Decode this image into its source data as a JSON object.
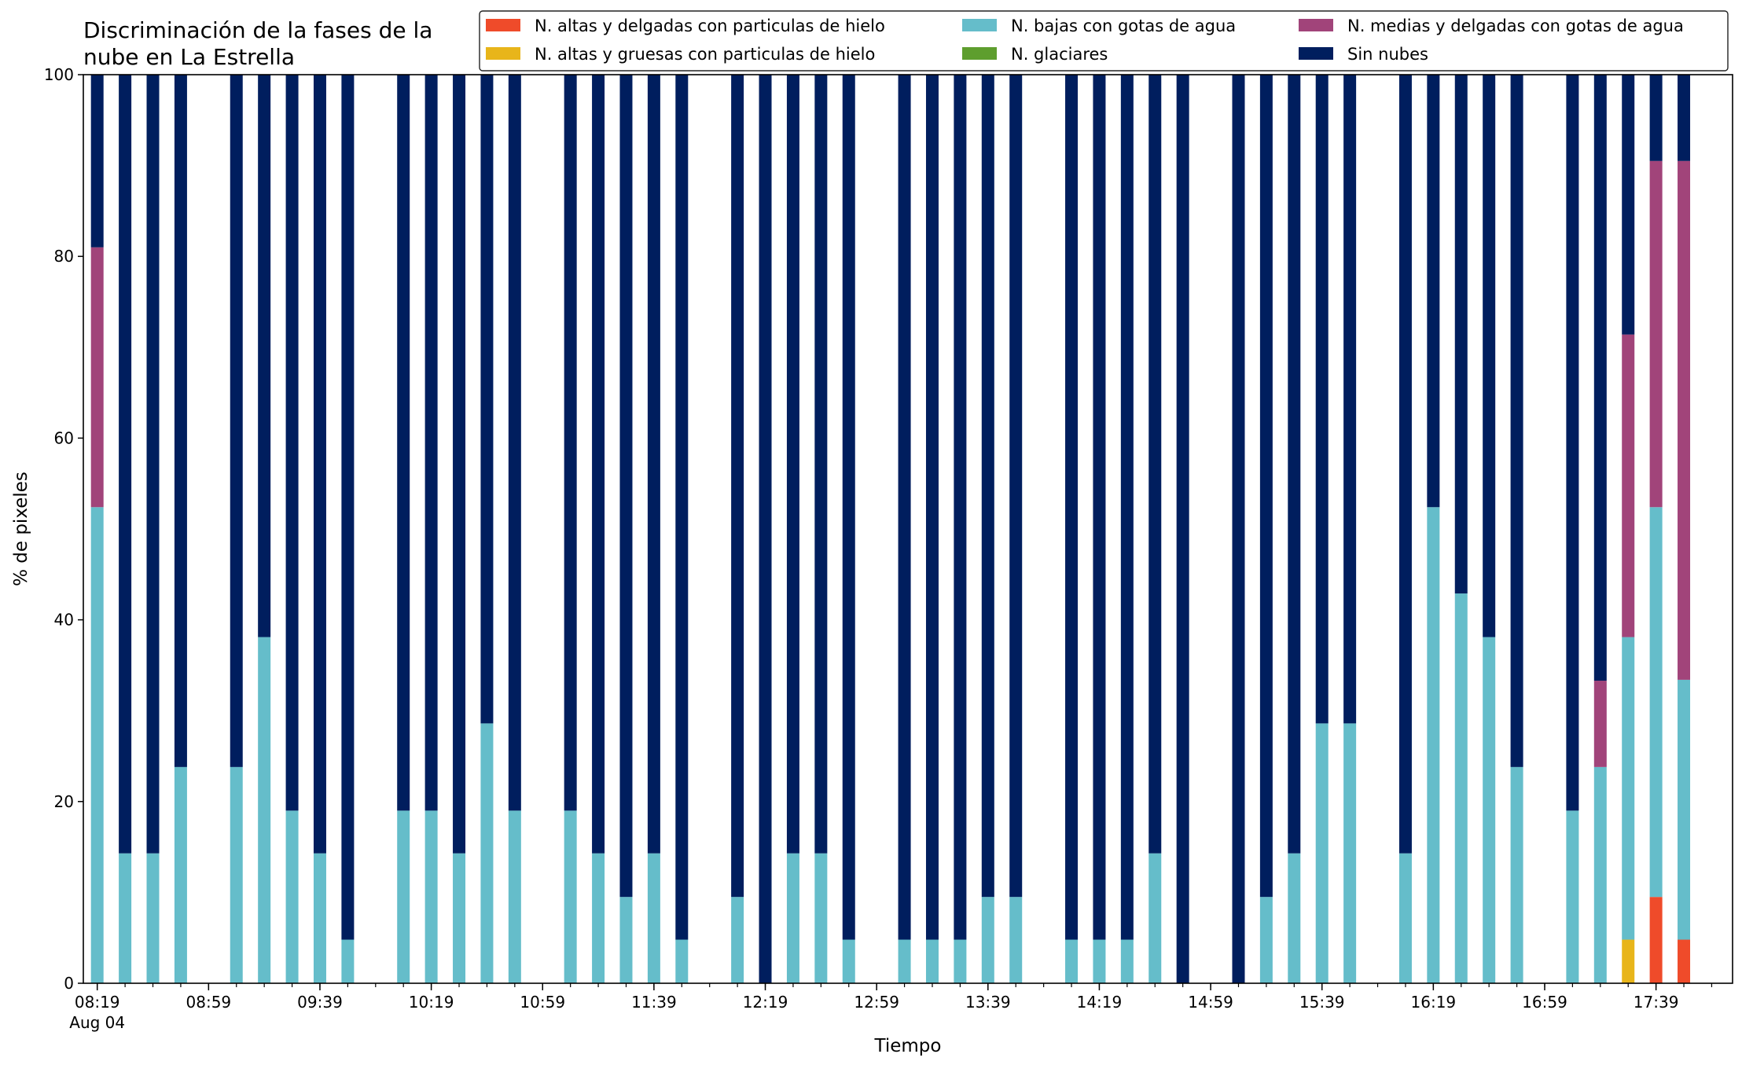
{
  "chart_data": {
    "type": "bar",
    "stacked": true,
    "title": "Discriminación de la fases de la\nnube en La Estrella",
    "xlabel": "Tiempo",
    "ylabel": "% de pixeles",
    "ylim": [
      0,
      100
    ],
    "yticks": [
      0,
      20,
      40,
      60,
      80,
      100
    ],
    "x_range_minutes": [
      0,
      580
    ],
    "xticks": [
      {
        "t": 0,
        "label": "08:19",
        "sublabel": "Aug 04"
      },
      {
        "t": 40,
        "label": "08:59"
      },
      {
        "t": 80,
        "label": "09:39"
      },
      {
        "t": 120,
        "label": "10:19"
      },
      {
        "t": 160,
        "label": "10:59"
      },
      {
        "t": 200,
        "label": "11:39"
      },
      {
        "t": 240,
        "label": "12:19"
      },
      {
        "t": 280,
        "label": "12:59"
      },
      {
        "t": 320,
        "label": "13:39"
      },
      {
        "t": 360,
        "label": "14:19"
      },
      {
        "t": 400,
        "label": "14:59"
      },
      {
        "t": 440,
        "label": "15:39"
      },
      {
        "t": 480,
        "label": "16:19"
      },
      {
        "t": 520,
        "label": "16:59"
      },
      {
        "t": 560,
        "label": "17:39"
      }
    ],
    "x_minor_step": 10,
    "legend_position": "top-right",
    "grid": false,
    "times": [
      "08:19",
      "08:29",
      "08:39",
      "08:49",
      "09:09",
      "09:19",
      "09:29",
      "09:39",
      "09:49",
      "10:09",
      "10:19",
      "10:29",
      "10:39",
      "10:49",
      "11:09",
      "11:19",
      "11:29",
      "11:39",
      "11:49",
      "12:09",
      "12:19",
      "12:29",
      "12:39",
      "12:49",
      "13:09",
      "13:19",
      "13:29",
      "13:39",
      "13:49",
      "14:09",
      "14:19",
      "14:29",
      "14:39",
      "14:49",
      "15:09",
      "15:19",
      "15:29",
      "15:39",
      "15:49",
      "16:09",
      "16:19",
      "16:29",
      "16:39",
      "16:49",
      "17:09",
      "17:19",
      "17:29",
      "17:39",
      "17:49"
    ],
    "t_minutes": [
      0,
      10,
      20,
      30,
      50,
      60,
      70,
      80,
      90,
      110,
      120,
      130,
      140,
      150,
      170,
      180,
      190,
      200,
      210,
      230,
      240,
      250,
      260,
      270,
      290,
      300,
      310,
      320,
      330,
      350,
      360,
      370,
      380,
      390,
      410,
      420,
      430,
      440,
      450,
      470,
      480,
      490,
      500,
      510,
      530,
      540,
      550,
      560,
      570
    ],
    "series": [
      {
        "name": "N. altas y delgadas con particulas de hielo",
        "color": "#ef4b2a",
        "values": [
          0,
          0,
          0,
          0,
          0,
          0,
          0,
          0,
          0,
          0,
          0,
          0,
          0,
          0,
          0,
          0,
          0,
          0,
          0,
          0,
          0,
          0,
          0,
          0,
          0,
          0,
          0,
          0,
          0,
          0,
          0,
          0,
          0,
          0,
          0,
          0,
          0,
          0,
          0,
          0,
          0,
          0,
          0,
          0,
          0,
          0,
          0,
          9.5,
          4.8
        ]
      },
      {
        "name": "N. altas y gruesas con particulas de hielo",
        "color": "#e8b51a",
        "values": [
          0,
          0,
          0,
          0,
          0,
          0,
          0,
          0,
          0,
          0,
          0,
          0,
          0,
          0,
          0,
          0,
          0,
          0,
          0,
          0,
          0,
          0,
          0,
          0,
          0,
          0,
          0,
          0,
          0,
          0,
          0,
          0,
          0,
          0,
          0,
          0,
          0,
          0,
          0,
          0,
          0,
          0,
          0,
          0,
          0,
          0,
          4.8,
          0,
          0
        ]
      },
      {
        "name": "N. bajas con gotas de agua",
        "color": "#65bdca",
        "values": [
          52.4,
          14.3,
          14.3,
          23.8,
          23.8,
          38.1,
          19.0,
          14.3,
          4.8,
          19.0,
          19.0,
          14.3,
          28.6,
          19.0,
          19.0,
          14.3,
          9.5,
          14.3,
          4.8,
          9.5,
          0,
          14.3,
          14.3,
          4.8,
          4.8,
          4.8,
          4.8,
          9.5,
          9.5,
          4.8,
          4.8,
          4.8,
          14.3,
          0,
          0,
          9.5,
          14.3,
          28.6,
          28.6,
          14.3,
          52.4,
          42.9,
          38.1,
          23.8,
          19.0,
          23.8,
          33.3,
          42.9,
          28.6
        ]
      },
      {
        "name": "N. glaciares",
        "color": "#5e9e2e",
        "values": [
          0,
          0,
          0,
          0,
          0,
          0,
          0,
          0,
          0,
          0,
          0,
          0,
          0,
          0,
          0,
          0,
          0,
          0,
          0,
          0,
          0,
          0,
          0,
          0,
          0,
          0,
          0,
          0,
          0,
          0,
          0,
          0,
          0,
          0,
          0,
          0,
          0,
          0,
          0,
          0,
          0,
          0,
          0,
          0,
          0,
          0,
          0,
          0,
          0
        ]
      },
      {
        "name": "N. medias y delgadas con gotas de agua",
        "color": "#a1447a",
        "values": [
          28.6,
          0,
          0,
          0,
          0,
          0,
          0,
          0,
          0,
          0,
          0,
          0,
          0,
          0,
          0,
          0,
          0,
          0,
          0,
          0,
          0,
          0,
          0,
          0,
          0,
          0,
          0,
          0,
          0,
          0,
          0,
          0,
          0,
          0,
          0,
          0,
          0,
          0,
          0,
          0,
          0,
          0,
          0,
          0,
          0,
          9.5,
          33.3,
          38.1,
          57.1
        ]
      },
      {
        "name": "Sin nubes",
        "color": "#001e5e",
        "values": [
          19.0,
          85.7,
          85.7,
          76.2,
          76.2,
          61.9,
          81.0,
          85.7,
          95.2,
          81.0,
          81.0,
          85.7,
          71.4,
          81.0,
          81.0,
          85.7,
          90.5,
          85.7,
          95.2,
          90.5,
          100,
          85.7,
          85.7,
          95.2,
          95.2,
          95.2,
          95.2,
          90.5,
          90.5,
          95.2,
          95.2,
          95.2,
          85.7,
          100,
          100,
          90.5,
          85.7,
          71.4,
          71.4,
          85.7,
          47.6,
          57.1,
          61.9,
          76.2,
          81.0,
          66.7,
          28.6,
          9.5,
          9.5
        ]
      }
    ]
  }
}
